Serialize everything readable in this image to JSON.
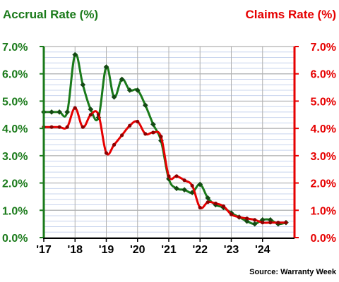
{
  "chart_data": {
    "type": "line",
    "left_axis_title": "Accrual Rate (%)",
    "right_axis_title": "Claims Rate (%)",
    "source": "Source: Warranty Week",
    "ylim": [
      0,
      7
    ],
    "y_ticks": [
      0,
      1,
      2,
      3,
      4,
      5,
      6,
      7
    ],
    "y_tick_labels": [
      "0.0%",
      "1.0%",
      "2.0%",
      "3.0%",
      "4.0%",
      "5.0%",
      "6.0%",
      "7.0%"
    ],
    "xlim": [
      2017,
      2025
    ],
    "x_ticks": [
      2017,
      2018,
      2019,
      2020,
      2021,
      2022,
      2023,
      2024
    ],
    "x_tick_labels": [
      "'17",
      "'18",
      "'19",
      "'20",
      "'21",
      "'22",
      "'23",
      "'24"
    ],
    "grid": true,
    "series": [
      {
        "key": "accrual",
        "color": "#1a7a1a",
        "marker": "diamond",
        "x": [
          2017.0,
          2017.25,
          2017.5,
          2017.75,
          2018.0,
          2018.25,
          2018.5,
          2018.75,
          2019.0,
          2019.25,
          2019.5,
          2019.75,
          2020.0,
          2020.25,
          2020.5,
          2020.75,
          2021.0,
          2021.25,
          2021.5,
          2021.75,
          2022.0,
          2022.25,
          2022.5,
          2022.75,
          2023.0,
          2023.25,
          2023.5,
          2023.75,
          2024.0,
          2024.25,
          2024.5,
          2024.75
        ],
        "y": [
          4.6,
          4.6,
          4.6,
          4.6,
          6.7,
          5.6,
          4.7,
          4.4,
          6.25,
          5.15,
          5.8,
          5.4,
          5.4,
          4.85,
          4.15,
          3.55,
          2.15,
          1.8,
          1.75,
          1.65,
          1.95,
          1.45,
          1.2,
          1.1,
          0.9,
          0.75,
          0.6,
          0.5,
          0.65,
          0.65,
          0.5,
          0.55
        ]
      },
      {
        "key": "claims",
        "color": "#e60000",
        "marker": "circle",
        "x": [
          2017.0,
          2017.25,
          2017.5,
          2017.75,
          2018.0,
          2018.25,
          2018.5,
          2018.75,
          2019.0,
          2019.25,
          2019.5,
          2019.75,
          2020.0,
          2020.25,
          2020.5,
          2020.75,
          2021.0,
          2021.25,
          2021.5,
          2021.75,
          2022.0,
          2022.25,
          2022.5,
          2022.75,
          2023.0,
          2023.25,
          2023.5,
          2023.75,
          2024.0,
          2024.25,
          2024.5,
          2024.75
        ],
        "y": [
          4.05,
          4.05,
          4.05,
          4.05,
          4.75,
          4.05,
          4.5,
          4.5,
          3.1,
          3.4,
          3.75,
          4.1,
          4.25,
          3.8,
          3.85,
          3.7,
          2.25,
          2.25,
          2.1,
          1.9,
          1.1,
          1.3,
          1.25,
          1.15,
          0.85,
          0.75,
          0.7,
          0.65,
          0.55,
          0.55,
          0.55,
          0.55
        ]
      }
    ]
  },
  "colors": {
    "left_axis": "#1a7a1a",
    "right_axis": "#e60000",
    "grid_major": "#b0b0b0",
    "grid_minor": "#c8d4ee",
    "x_axis_text": "#000000"
  }
}
